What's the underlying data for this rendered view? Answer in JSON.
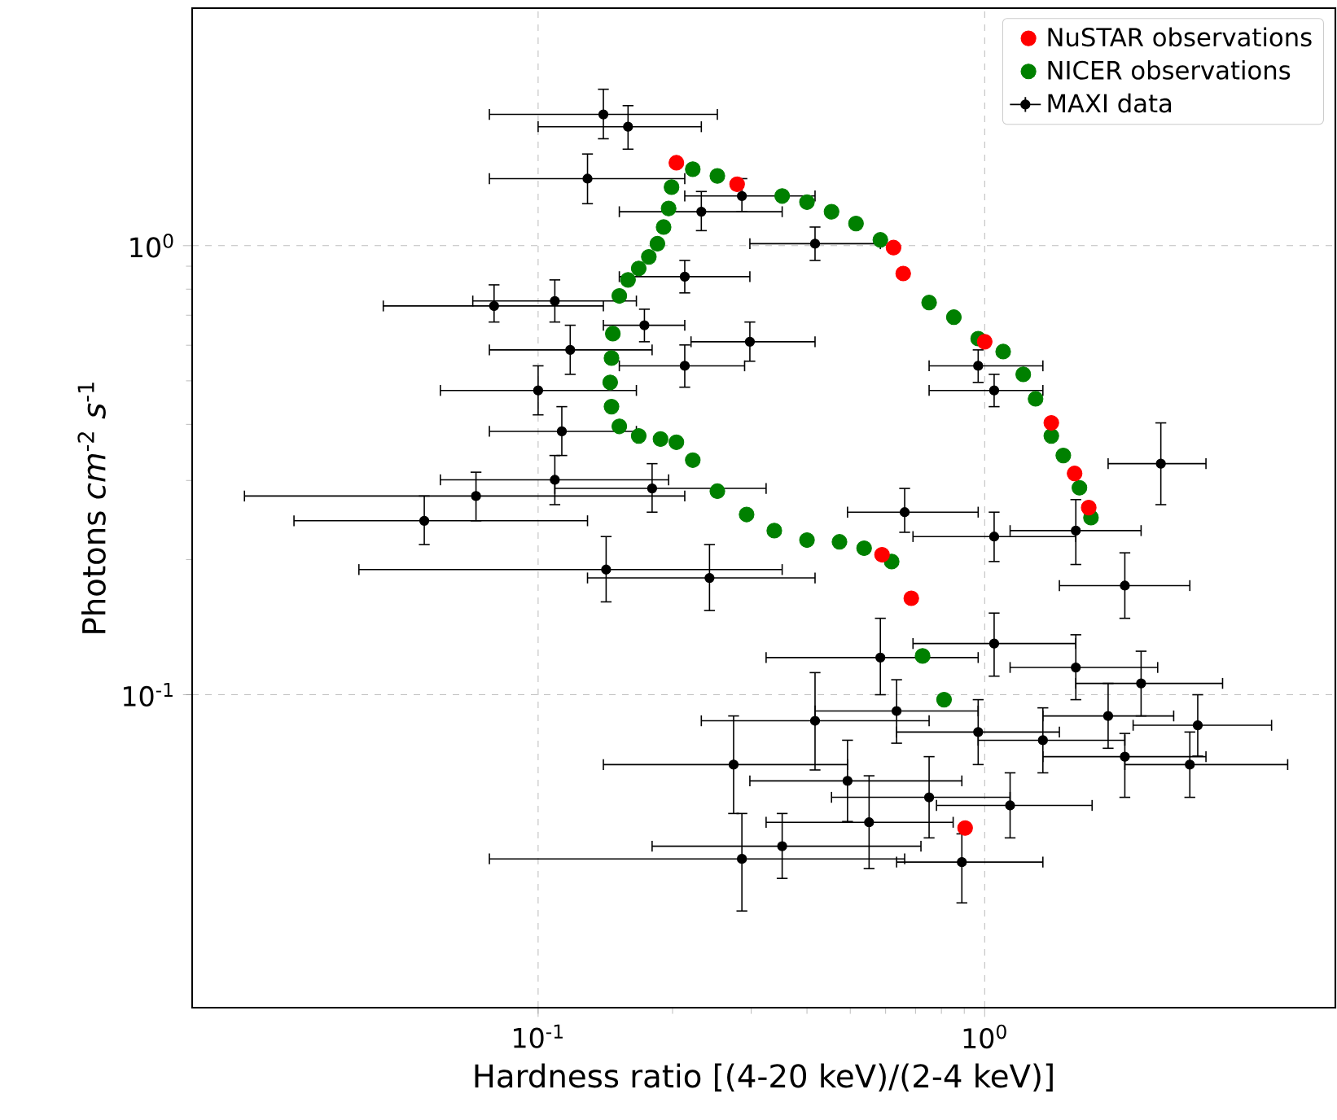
{
  "chart_data": {
    "type": "scatter",
    "xlabel": "Hardness ratio [(4-20 keV)/(2-4 keV)]",
    "ylabel": "Photons *cm*$^{-2}$ *s*$^{-1}$",
    "log": "xy",
    "grid": true,
    "legend": "top right",
    "marker": "circle",
    "xlim": [
      0.0168,
      6.1
    ],
    "ylim": [
      0.0201,
      3.38
    ],
    "xticks": [
      {
        "value": 0.1,
        "label": "10$^{-1}$"
      },
      {
        "value": 1,
        "label": "10$^{0}$"
      }
    ],
    "yticks": [
      {
        "value": 0.1,
        "label": "10$^{-1}$"
      },
      {
        "value": 1,
        "label": "10$^{0}$"
      }
    ],
    "series": [
      {
        "name": "NuSTAR observations",
        "color": "#ff0000",
        "x": [
          0.204,
          0.279,
          0.625,
          0.657,
          1.0,
          1.41,
          1.59,
          1.71,
          0.589,
          0.685,
          0.904
        ],
        "values": [
          1.53,
          1.37,
          0.99,
          0.867,
          0.611,
          0.403,
          0.311,
          0.261,
          0.205,
          0.164,
          0.0505
        ]
      },
      {
        "name": "NICER observations",
        "color": "#008000",
        "x": [
          0.222,
          0.252,
          0.286,
          0.352,
          0.4,
          0.454,
          0.515,
          0.584,
          0.668,
          0.751,
          0.853,
          0.967,
          1.1,
          1.22,
          1.3,
          1.41,
          1.5,
          1.63,
          1.73,
          0.199,
          0.196,
          0.191,
          0.185,
          0.177,
          0.168,
          0.159,
          0.152,
          0.147,
          0.146,
          0.145,
          0.146,
          0.152,
          0.168,
          0.188,
          0.204,
          0.222,
          0.252,
          0.293,
          0.338,
          0.4,
          0.473,
          0.537,
          0.619,
          0.726,
          0.811
        ],
        "values": [
          1.48,
          1.43,
          null,
          1.29,
          1.25,
          1.19,
          1.12,
          1.03,
          null,
          0.747,
          0.693,
          0.621,
          0.581,
          0.517,
          0.456,
          0.377,
          0.341,
          0.289,
          0.248,
          1.35,
          1.21,
          1.1,
          1.01,
          0.944,
          0.89,
          0.839,
          0.773,
          0.637,
          0.562,
          0.496,
          0.438,
          0.396,
          0.377,
          0.371,
          0.365,
          0.333,
          0.284,
          0.252,
          0.232,
          0.221,
          0.219,
          0.212,
          0.198,
          0.122,
          0.0975
        ]
      },
      {
        "name": "MAXI data",
        "color": "#000000",
        "x": [
          0.14,
          0.159,
          0.129,
          0.232,
          0.286,
          0.417,
          0.0797,
          0.109,
          0.118,
          0.1,
          0.113,
          0.298,
          0.213,
          0.967,
          null,
          1.05,
          0.0726,
          0.0556,
          0.142,
          0.242,
          0.18,
          0.109,
          0.662,
          1.05,
          1.6,
          2.48,
          2.06,
          0.584,
          1.05,
          1.6,
          2.24,
          0.417,
          0.635,
          0.967,
          1.35,
          2.06,
          2.88,
          0.274,
          0.493,
          0.751,
          1.14,
          0.352,
          0.889,
          0.286,
          0.551,
          1.89,
          3.0,
          0.213,
          0.173
        ],
        "values": [
          1.96,
          1.84,
          1.41,
          1.19,
          1.29,
          1.01,
          0.734,
          0.753,
          0.586,
          0.476,
          0.386,
          0.611,
          0.54,
          0.54,
          null,
          0.476,
          0.277,
          0.244,
          0.19,
          0.182,
          0.288,
          0.301,
          0.255,
          0.225,
          0.232,
          0.327,
          0.175,
          0.121,
          0.13,
          0.115,
          0.106,
          0.0875,
          0.092,
          0.0826,
          0.0792,
          0.0728,
          0.0699,
          0.0699,
          0.0643,
          0.0591,
          0.0567,
          0.046,
          0.0424,
          0.0431,
          0.052,
          0.0897,
          0.0855,
          0.853,
          0.665
        ],
        "xerrors": [
          [
            0.0778,
            0.252
          ],
          [
            0.1,
            0.232
          ],
          [
            0.0778,
            0.213
          ],
          [
            0.152,
            0.352
          ],
          [
            0.213,
            0.417
          ],
          [
            0.298,
            0.584
          ],
          [
            0.045,
            0.14
          ],
          [
            0.0714,
            0.166
          ],
          [
            0.0778,
            0.18
          ],
          [
            0.0604,
            0.166
          ],
          [
            0.0778,
            0.166
          ],
          [
            0.22,
            0.417
          ],
          [
            0.152,
            0.29
          ],
          [
            0.751,
            1.35
          ],
          null,
          [
            0.751,
            1.35
          ],
          [
            0.022,
            0.213
          ],
          [
            0.0284,
            0.129
          ],
          [
            0.0397,
            0.352
          ],
          [
            0.129,
            0.417
          ],
          [
            0.109,
            0.324
          ],
          [
            0.0604,
            0.196
          ],
          [
            0.493,
            0.967
          ],
          [
            0.691,
            1.6
          ],
          [
            1.14,
            2.24
          ],
          [
            1.89,
            3.13
          ],
          [
            1.47,
            2.88
          ],
          [
            0.324,
            0.967
          ],
          [
            0.691,
            1.6
          ],
          [
            1.14,
            2.44
          ],
          [
            1.6,
            3.41
          ],
          [
            0.232,
            0.751
          ],
          [
            0.417,
            0.967
          ],
          [
            0.635,
            1.47
          ],
          [
            0.967,
            2.06
          ],
          [
            1.35,
            3.13
          ],
          [
            2.06,
            4.77
          ],
          [
            0.14,
            0.493
          ],
          [
            0.298,
            0.889
          ],
          [
            0.454,
            1.14
          ],
          [
            0.78,
            1.74
          ],
          [
            0.18,
            0.72
          ],
          [
            0.635,
            1.35
          ],
          [
            0.0778,
            0.662
          ],
          [
            0.324,
            0.85
          ],
          [
            1.35,
            2.65
          ],
          [
            2.15,
            4.39
          ],
          [
            0.152,
            0.298
          ],
          [
            0.14,
            0.213
          ]
        ],
        "errors": [
          [
            1.73,
            2.23
          ],
          [
            1.64,
            2.05
          ],
          [
            1.24,
            1.6
          ],
          [
            1.08,
            1.32
          ],
          [
            1.19,
            1.41
          ],
          [
            0.927,
            1.1
          ],
          [
            0.676,
            0.818
          ],
          [
            0.676,
            0.839
          ],
          [
            0.517,
            0.665
          ],
          [
            0.42,
            0.54
          ],
          [
            0.341,
            0.438
          ],
          [
            0.553,
            0.676
          ],
          [
            0.484,
            0.601
          ],
          [
            0.496,
            0.586
          ],
          null,
          [
            0.438,
            0.517
          ],
          [
            0.244,
            0.313
          ],
          [
            0.216,
            0.277
          ],
          [
            0.161,
            0.225
          ],
          [
            0.154,
            0.216
          ],
          [
            0.255,
            0.327
          ],
          [
            0.265,
            0.341
          ],
          [
            0.23,
            0.288
          ],
          [
            0.198,
            0.255
          ],
          [
            0.195,
            0.272
          ],
          [
            0.265,
            0.403
          ],
          [
            0.148,
            0.207
          ],
          [
            0.1,
            0.148
          ],
          [
            0.11,
            0.152
          ],
          [
            0.0975,
            0.136
          ],
          [
            0.0897,
            0.125
          ],
          [
            0.068,
            0.112
          ],
          [
            0.078,
            0.108
          ],
          [
            0.0699,
            0.0975
          ],
          [
            0.067,
            0.0935
          ],
          [
            0.0591,
            0.082
          ],
          [
            0.0591,
            0.0826
          ],
          [
            0.0544,
            0.0897
          ],
          [
            0.0522,
            0.0792
          ],
          [
            0.048,
            0.0728
          ],
          [
            0.048,
            0.067
          ],
          [
            0.039,
            0.0544
          ],
          [
            0.0344,
            0.049
          ],
          [
            0.033,
            0.0544
          ],
          [
            0.041,
            0.066
          ],
          [
            0.076,
            0.106
          ],
          [
            0.073,
            0.1
          ],
          [
            0.785,
            0.927
          ],
          [
            0.611,
            0.722
          ]
        ]
      }
    ]
  }
}
